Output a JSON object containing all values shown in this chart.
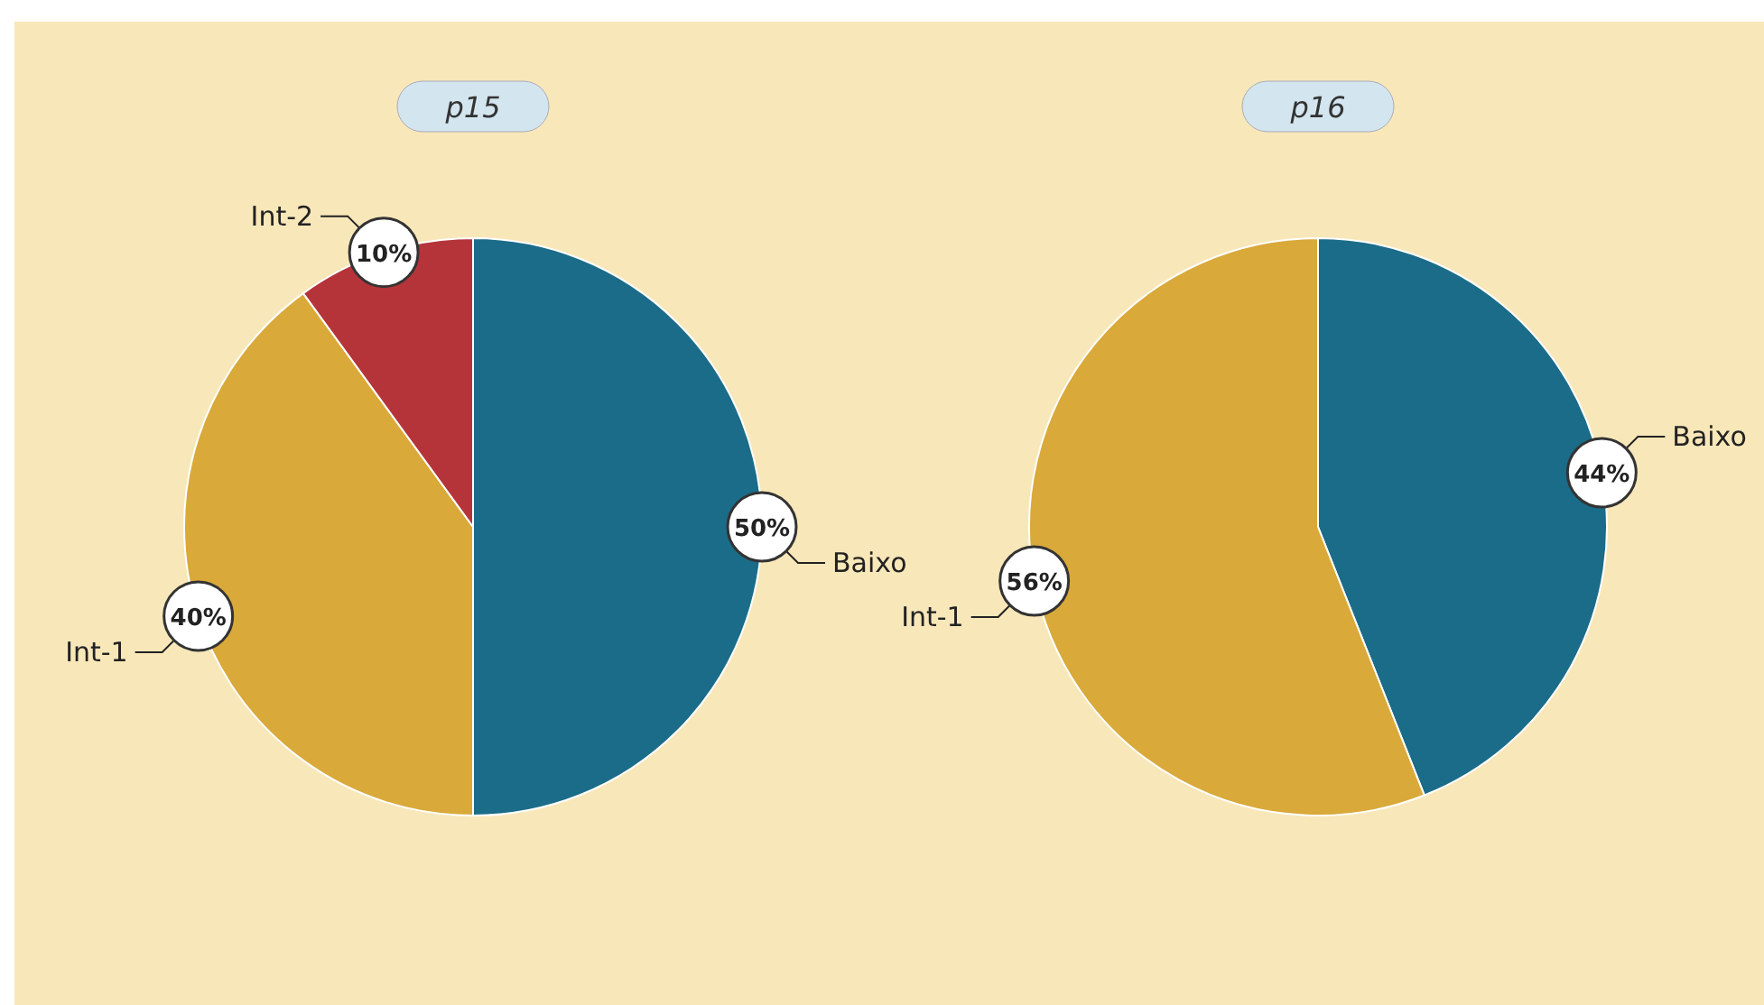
{
  "chart_data": [
    {
      "type": "pie",
      "title": "p15",
      "categories": [
        "Baixo",
        "Int-1",
        "Int-2"
      ],
      "values": [
        50,
        40,
        10
      ],
      "colors": [
        "#1b6c88",
        "#d9a93a",
        "#b5343a"
      ],
      "value_labels": [
        "50%",
        "40%",
        "10%"
      ]
    },
    {
      "type": "pie",
      "title": "p16",
      "categories": [
        "Baixo",
        "Int-1"
      ],
      "values": [
        44,
        56
      ],
      "colors": [
        "#1b6c88",
        "#d9a93a"
      ],
      "value_labels": [
        "44%",
        "56%"
      ]
    }
  ]
}
